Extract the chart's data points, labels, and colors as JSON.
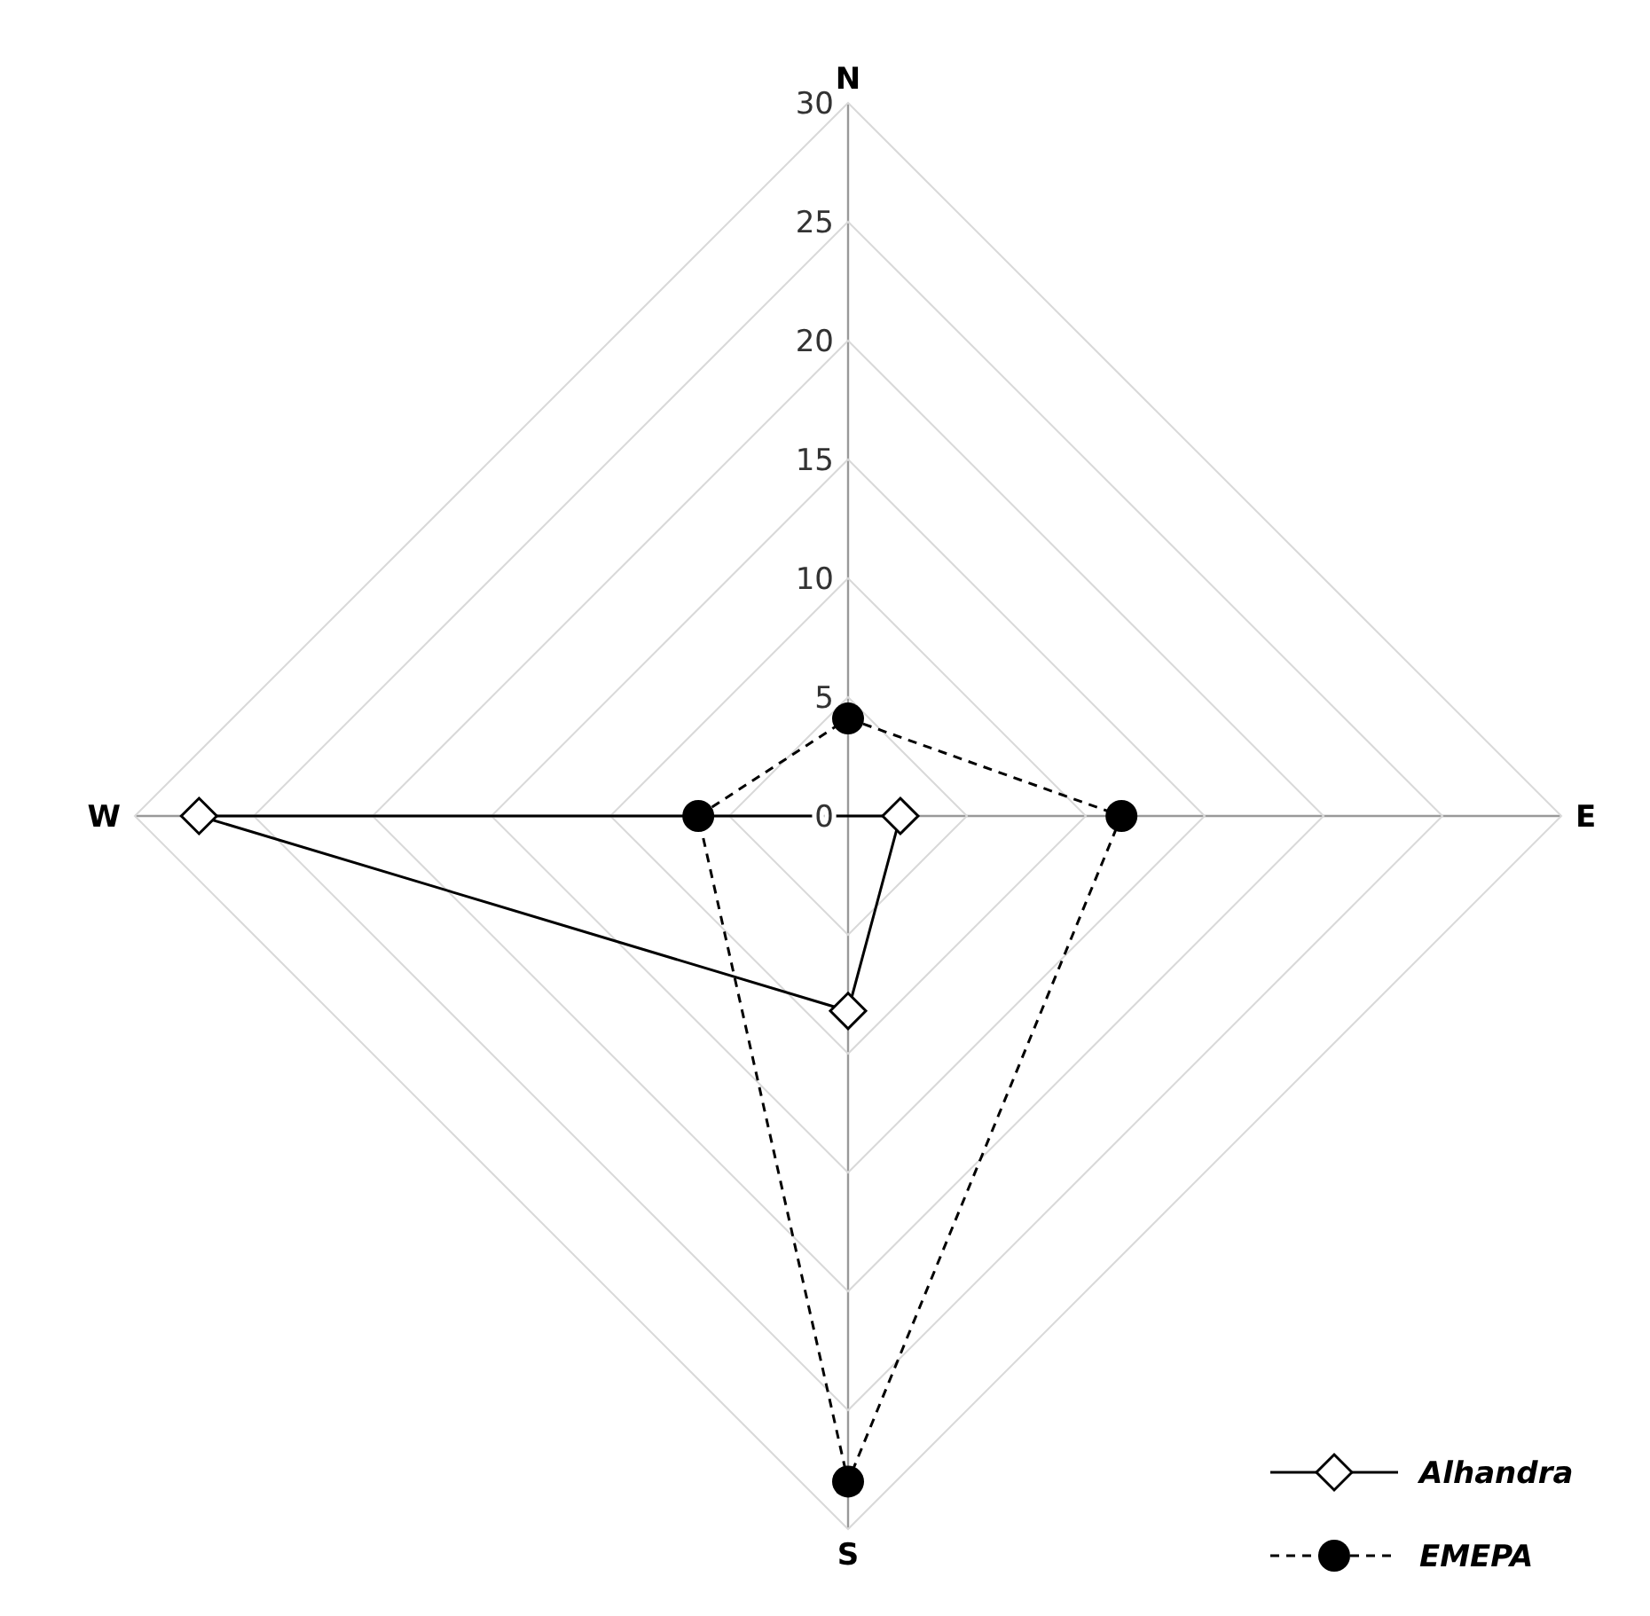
{
  "chart_data": {
    "type": "radar",
    "categories": [
      "N",
      "E",
      "S",
      "W"
    ],
    "series": [
      {
        "name": "Alhandra",
        "color": "#000000",
        "values": [
          null,
          2.2,
          8.2,
          27.3
        ],
        "marker": "diamond",
        "line_style": "solid"
      },
      {
        "name": "EMEPA",
        "color": "#000000",
        "values": [
          4.1,
          11.5,
          28,
          6.3
        ],
        "marker": "circle",
        "line_style": "dashed"
      }
    ],
    "ylim": [
      0,
      30
    ],
    "yticks": [
      0,
      5,
      10,
      15,
      20,
      25,
      30
    ],
    "grid": true,
    "legend": "bottom right"
  }
}
